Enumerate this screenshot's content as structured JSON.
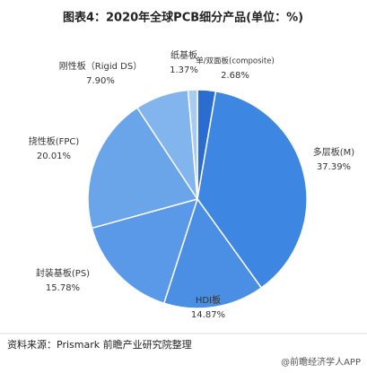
{
  "chart_data": {
    "type": "pie",
    "title": "图表4：2020年全球PCB细分产品(单位：%)",
    "categories": [
      "单/双面板(composite)",
      "多层板(M)",
      "HDI板",
      "封装基板(PS)",
      "挠性板(FPC)",
      "刚性板（Rigid DS）",
      "纸基板"
    ],
    "values": [
      2.68,
      37.39,
      14.87,
      15.78,
      20.01,
      7.9,
      1.37
    ],
    "value_labels": [
      "2.68%",
      "37.39%",
      "14.87%",
      "15.78%",
      "20.01%",
      "7.90%",
      "1.37%"
    ],
    "colors": [
      "#2b6cd0",
      "#3d86e2",
      "#4b8fe5",
      "#5a99e7",
      "#6aa5ea",
      "#82b4ee",
      "#a8cbf2"
    ],
    "source": "资料来源：Prismark 前瞻产业研究院整理",
    "footer": "@前瞻经济学人APP"
  }
}
